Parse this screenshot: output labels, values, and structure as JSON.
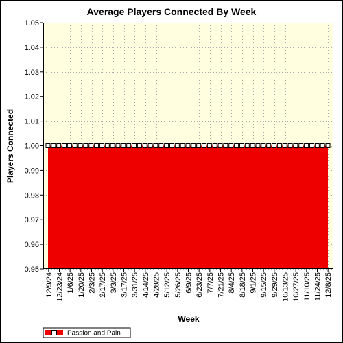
{
  "colors": {
    "plot_bg": "#ffffe0",
    "area_fill": "#ee0000",
    "grid": "#aaaaaa"
  },
  "chart_data": {
    "type": "area",
    "title": "Average Players Connected By Week",
    "xlabel": "Week",
    "ylabel": "Players Connected",
    "ylim": [
      0.95,
      1.05
    ],
    "yticks": [
      "0.95",
      "0.96",
      "0.97",
      "0.98",
      "0.99",
      "1.00",
      "1.01",
      "1.02",
      "1.03",
      "1.04",
      "1.05"
    ],
    "xtick_labels": [
      "12/9/24",
      "12/23/24",
      "1/6/25",
      "1/20/25",
      "2/3/25",
      "2/17/25",
      "3/3/25",
      "3/17/25",
      "3/31/25",
      "4/14/25",
      "4/28/25",
      "5/12/25",
      "5/26/25",
      "6/9/25",
      "6/23/25",
      "7/7/25",
      "7/21/25",
      "8/4/25",
      "8/18/25",
      "9/1/25",
      "9/15/25",
      "9/29/25",
      "10/13/25",
      "10/27/25",
      "11/10/25",
      "11/24/25",
      "12/8/25"
    ],
    "grid": true,
    "legend_position": "bottom-left",
    "series": [
      {
        "name": "Passion and Pain",
        "color": "#ee0000",
        "values": [
          1,
          1,
          1,
          1,
          1,
          1,
          1,
          1,
          1,
          1,
          1,
          1,
          1,
          1,
          1,
          1,
          1,
          1,
          1,
          1,
          1,
          1,
          1,
          1,
          1,
          1,
          1,
          1,
          1,
          1,
          1,
          1,
          1,
          1,
          1,
          1,
          1,
          1,
          1,
          1,
          1,
          1,
          1,
          1,
          1,
          1,
          1,
          1,
          1,
          1,
          1,
          1,
          1
        ]
      }
    ]
  }
}
